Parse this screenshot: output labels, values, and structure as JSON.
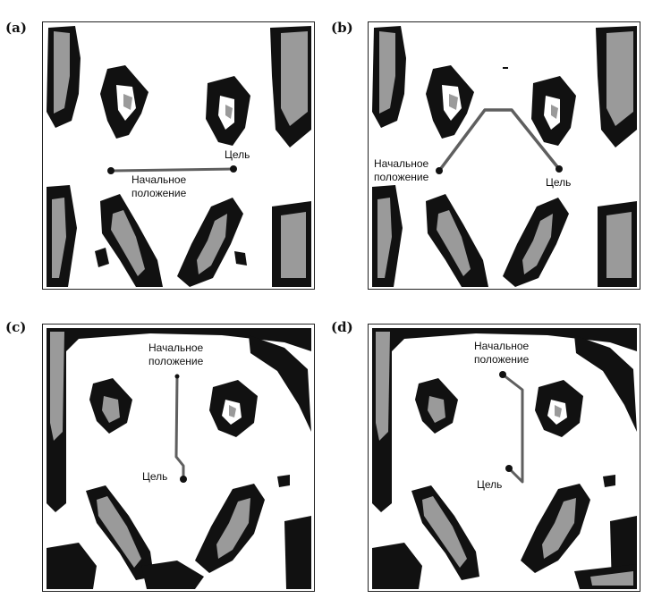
{
  "figure": {
    "panels": [
      {
        "tag": "(a)",
        "start_label": [
          "Начальное",
          "положение"
        ],
        "goal_label": "Цель"
      },
      {
        "tag": "(b)",
        "start_label": [
          "Начальное",
          "положение"
        ],
        "goal_label": "Цель"
      },
      {
        "tag": "(c)",
        "start_label": [
          "Начальное",
          "положение"
        ],
        "goal_label": "Цель"
      },
      {
        "tag": "(d)",
        "start_label": [
          "Начальное",
          "положение"
        ],
        "goal_label": "Цель"
      }
    ]
  },
  "colors": {
    "obstacle_dark": "#111111",
    "obstacle_gray": "#9a9a9a",
    "path": "#5f5f5f",
    "point": "#111111"
  }
}
